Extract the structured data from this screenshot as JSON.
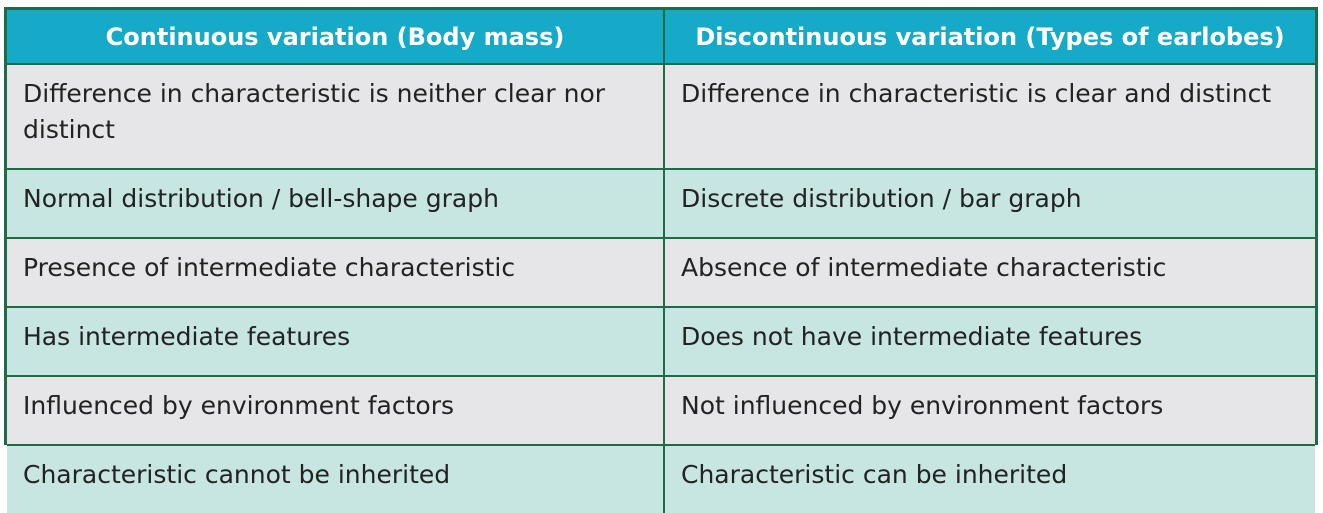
{
  "table": {
    "headers": [
      "Continuous variation (Body mass)",
      "Discontinuous variation (Types of earlobes)"
    ],
    "rows": [
      [
        "Difference in characteristic is neither clear nor distinct",
        "Difference in characteristic is clear and distinct"
      ],
      [
        "Normal distribution / bell-shape graph",
        "Discrete distribution / bar graph"
      ],
      [
        "Presence of intermediate characteristic",
        "Absence of intermediate characteristic"
      ],
      [
        "Has intermediate features",
        "Does not have intermediate features"
      ],
      [
        "Influenced by environment factors",
        "Not influenced by environment factors"
      ],
      [
        "Characteristic cannot be inherited",
        "Characteristic can be inherited"
      ]
    ],
    "colors": {
      "header_bg": "#16aac9",
      "border": "#1f6b45",
      "row_gray": "#e6e5e7",
      "row_mint": "#c7e6e1"
    }
  }
}
